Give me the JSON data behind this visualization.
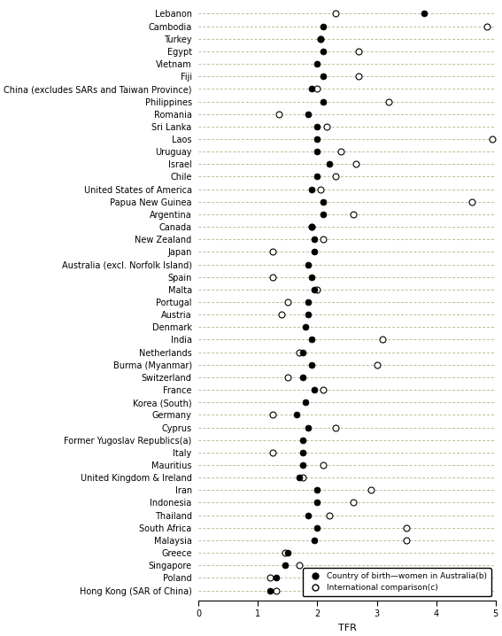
{
  "xlabel": "TFR",
  "xlim": [
    0,
    5
  ],
  "xticks": [
    0,
    1,
    2,
    3,
    4,
    5
  ],
  "countries": [
    "Lebanon",
    "Cambodia",
    "Turkey",
    "Egypt",
    "Vietnam",
    "Fiji",
    "China (excludes SARs and Taiwan Province)",
    "Philippines",
    "Romania",
    "Sri Lanka",
    "Laos",
    "Uruguay",
    "Israel",
    "Chile",
    "United States of America",
    "Papua New Guinea",
    "Argentina",
    "Canada",
    "New Zealand",
    "Japan",
    "Australia (excl. Norfolk Island)",
    "Spain",
    "Malta",
    "Portugal",
    "Austria",
    "Denmark",
    "India",
    "Netherlands",
    "Burma (Myanmar)",
    "Switzerland",
    "France",
    "Korea (South)",
    "Germany",
    "Cyprus",
    "Former Yugoslav Republics(a)",
    "Italy",
    "Mauritius",
    "United Kingdom & Ireland",
    "Iran",
    "Indonesia",
    "Thailand",
    "South Africa",
    "Malaysia",
    "Greece",
    "Singapore",
    "Poland",
    "Hong Kong (SAR of China)"
  ],
  "filled_dots": [
    3.8,
    2.1,
    2.05,
    2.1,
    2.0,
    2.1,
    1.9,
    2.1,
    1.85,
    2.0,
    2.0,
    2.0,
    2.2,
    2.0,
    1.9,
    2.1,
    2.1,
    1.9,
    1.95,
    1.95,
    1.85,
    1.9,
    1.95,
    1.85,
    1.85,
    1.8,
    1.9,
    1.75,
    1.9,
    1.75,
    1.95,
    1.8,
    1.65,
    1.85,
    1.75,
    1.75,
    1.75,
    1.7,
    2.0,
    2.0,
    1.85,
    2.0,
    1.95,
    1.5,
    1.45,
    1.3,
    1.2
  ],
  "open_dots": [
    2.3,
    4.85,
    2.05,
    2.7,
    null,
    2.7,
    2.0,
    3.2,
    1.35,
    2.15,
    4.95,
    2.4,
    2.65,
    2.3,
    2.05,
    4.6,
    2.6,
    1.9,
    2.1,
    1.25,
    null,
    1.25,
    2.0,
    1.5,
    1.4,
    null,
    3.1,
    1.7,
    3.0,
    1.5,
    2.1,
    null,
    1.25,
    2.3,
    null,
    1.25,
    2.1,
    1.75,
    2.9,
    2.6,
    2.2,
    3.5,
    3.5,
    1.45,
    1.7,
    1.2,
    1.3
  ],
  "legend_filled": "Country of birth—women in Australia(b)",
  "legend_open": "International comparison(c)",
  "background_color": "#ffffff",
  "dot_color_filled": "#000000",
  "line_color": "#a0a060",
  "fontsize": 7.0,
  "marker_size": 5
}
